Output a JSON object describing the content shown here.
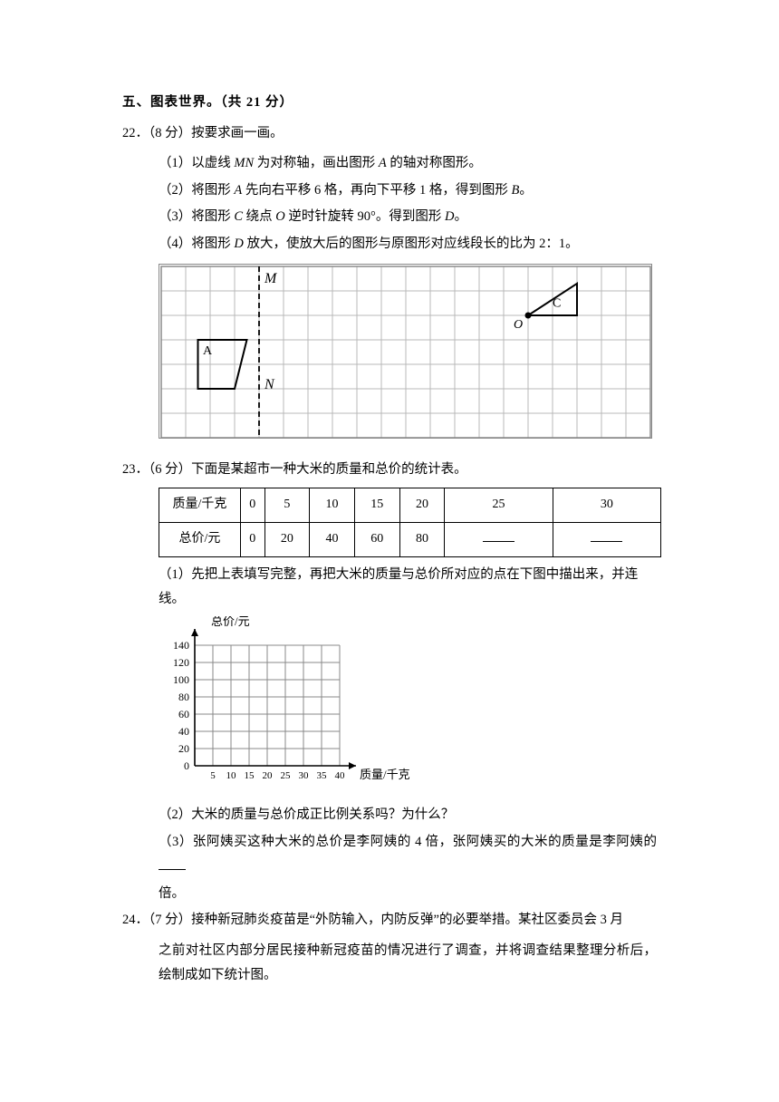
{
  "section": {
    "title": "五、图表世界。（共 21 分）"
  },
  "q22": {
    "num": "22．",
    "pts": "（8 分）",
    "stem": "按要求画一画。",
    "s1a": "（1）以虚线 ",
    "s1_mn": "MN",
    "s1b": " 为对称轴，画出图形 ",
    "s1_A": "A",
    "s1c": " 的轴对称图形。",
    "s2a": "（2）将图形 ",
    "s2_A": "A",
    "s2b": " 先向右平移 6 格，再向下平移 1 格，得到图形 ",
    "s2_B": "B",
    "s2c": "。",
    "s3a": "（3）将图形 ",
    "s3_C": "C",
    "s3b": " 绕点 ",
    "s3_O": "O",
    "s3c": " 逆时针旋转 90°。得到图形 ",
    "s3_D": "D",
    "s3d": "。",
    "s4a": "（4）将图形 ",
    "s4_D": "D",
    "s4b": " 放大，使放大后的图形与原图形对应线段长的比为 2：1。",
    "grid": {
      "cols": 20,
      "rows": 7,
      "cell": 27,
      "line_color": "#b8b8b8",
      "border_color": "#8a8a8a",
      "M": "M",
      "N": "N",
      "A": "A",
      "C": "C",
      "O": "O",
      "text_color": "#000",
      "shape_stroke": "#000"
    }
  },
  "q23": {
    "num": "23．",
    "pts": "（6 分）",
    "stem": "下面是某超市一种大米的质量和总价的统计表。",
    "table": {
      "row1label": "质量/千克",
      "row2label": "总价/元",
      "cols": [
        "0",
        "5",
        "10",
        "15",
        "20",
        "25",
        "30"
      ],
      "vals": [
        "0",
        "20",
        "40",
        "60",
        "80",
        "",
        ""
      ]
    },
    "s1": "（1）先把上表填写完整，再把大米的质量与总价所对应的点在下图中描出来，并连线。",
    "s2": "（2）大米的质量与总价成正比例关系吗？为什么？",
    "s3a": "（3）张阿姨买这种大米的总价是李阿姨的 4 倍，张阿姨买的大米的质量是李阿姨的",
    "s3b": "倍。",
    "chart": {
      "ylabel": "总价/元",
      "xlabel": "质量/千克",
      "yticks": [
        "0",
        "20",
        "40",
        "60",
        "80",
        "100",
        "120",
        "140"
      ],
      "xticks": [
        "5",
        "10",
        "15",
        "20",
        "25",
        "30",
        "35",
        "40"
      ],
      "line_color": "#888",
      "axis_color": "#000"
    }
  },
  "q24": {
    "num": "24．",
    "pts": "（7 分）",
    "stem": "接种新冠肺炎疫苗是“外防输入，内防反弹”的必要举措。某社区委员会 3 月之前对社区内部分居民接种新冠疫苗的情况进行了调查，并将调查结果整理分析后，绘制成如下统计图。"
  }
}
